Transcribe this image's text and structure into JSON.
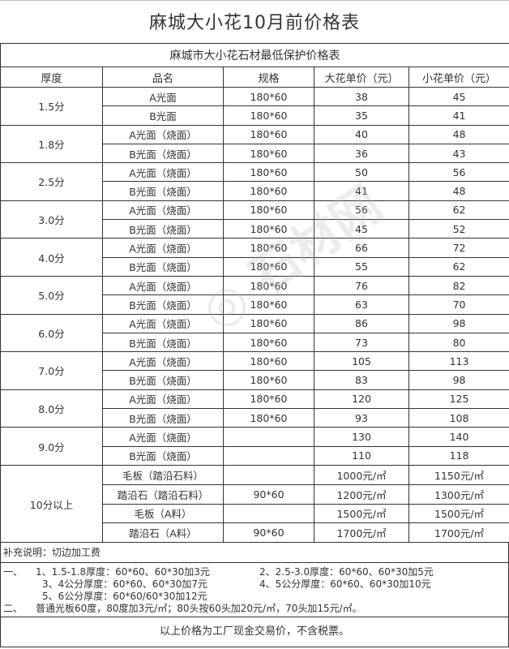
{
  "title": "麻城大小花10月前价格表",
  "subtitle": "麻城市大小花石材最低保护价格表",
  "headers": [
    "厚度",
    "品名",
    "规格",
    "大花单价（元）",
    "小花单价（元）"
  ],
  "groups": [
    {
      "thickness": "1.5分",
      "rows": [
        {
          "name": "A光面",
          "spec": "180*60",
          "big": "38",
          "small": "45"
        },
        {
          "name": "B光面",
          "spec": "180*60",
          "big": "35",
          "small": "41"
        }
      ]
    },
    {
      "thickness": "1.8分",
      "rows": [
        {
          "name": "A光面（烧面）",
          "spec": "180*60",
          "big": "40",
          "small": "48"
        },
        {
          "name": "B光面（烧面）",
          "spec": "180*60",
          "big": "36",
          "small": "43"
        }
      ]
    },
    {
      "thickness": "2.5分",
      "rows": [
        {
          "name": "A光面（烧面）",
          "spec": "180*60",
          "big": "50",
          "small": "56"
        },
        {
          "name": "B光面（烧面）",
          "spec": "180*60",
          "big": "41",
          "small": "48"
        }
      ]
    },
    {
      "thickness": "3.0分",
      "rows": [
        {
          "name": "A光面（烧面）",
          "spec": "180*60",
          "big": "56",
          "small": "62"
        },
        {
          "name": "B光面（烧面）",
          "spec": "180*60",
          "big": "45",
          "small": "52"
        }
      ]
    },
    {
      "thickness": "4.0分",
      "rows": [
        {
          "name": "A光面（烧面）",
          "spec": "180*60",
          "big": "66",
          "small": "72"
        },
        {
          "name": "B光面（烧面）",
          "spec": "180*60",
          "big": "55",
          "small": "62"
        }
      ]
    },
    {
      "thickness": "5.0分",
      "rows": [
        {
          "name": "A光面（烧面）",
          "spec": "180*60",
          "big": "76",
          "small": "82"
        },
        {
          "name": "B光面（烧面）",
          "spec": "180*60",
          "big": "63",
          "small": "70"
        }
      ]
    },
    {
      "thickness": "6.0分",
      "rows": [
        {
          "name": "A光面（烧面）",
          "spec": "180*60",
          "big": "86",
          "small": "98"
        },
        {
          "name": "B光面（烧面）",
          "spec": "180*60",
          "big": "73",
          "small": "80"
        }
      ]
    },
    {
      "thickness": "7.0分",
      "rows": [
        {
          "name": "A光面（烧面）",
          "spec": "180*60",
          "big": "105",
          "small": "113"
        },
        {
          "name": "B光面（烧面）",
          "spec": "180*60",
          "big": "83",
          "small": "98"
        }
      ]
    },
    {
      "thickness": "8.0分",
      "rows": [
        {
          "name": "A光面（烧面）",
          "spec": "180*60",
          "big": "120",
          "small": "125"
        },
        {
          "name": "B光面（烧面）",
          "spec": "180*60",
          "big": "93",
          "small": "108"
        }
      ]
    },
    {
      "thickness": "9.0分",
      "rows": [
        {
          "name": "A光面（烧面）",
          "spec": "",
          "big": "130",
          "small": "140"
        },
        {
          "name": "B光面（烧面）",
          "spec": "",
          "big": "110",
          "small": "118"
        }
      ]
    },
    {
      "thickness": "10分以上",
      "rows": [
        {
          "name": "毛板（踏沿石料）",
          "spec": "",
          "big": "1000元/㎡",
          "small": "1150元/㎡"
        },
        {
          "name": "踏沿石（踏沿石料）",
          "spec": "90*60",
          "big": "1200元/㎡",
          "small": "1300元/㎡"
        },
        {
          "name": "毛板（A料）",
          "spec": "",
          "big": "1500元/㎡",
          "small": "1500元/㎡"
        },
        {
          "name": "踏沿石（A料）",
          "spec": "90*60",
          "big": "1700元/㎡",
          "small": "1700元/㎡"
        }
      ]
    }
  ],
  "notes": {
    "heading": "补充说明：切边加工费",
    "one_label": "一、",
    "items": [
      "1、1.5-1.8厚度：60*60、60*30加3元",
      "2、2.5-3.0厚度：60*60、60*30加5元",
      "3、4公分厚度：60*60、60*30加7元",
      "4、5公分厚度：60*60、60*30加10元",
      "5、6公分厚度：60*60/60*30加12元"
    ],
    "two_label": "二、",
    "two_text": "普通光板60度，80度加3元/㎡；80头按60头加20元/㎡，70头加15元/㎡。"
  },
  "footer": "以上价格为工厂现金交易价，不含税票。"
}
